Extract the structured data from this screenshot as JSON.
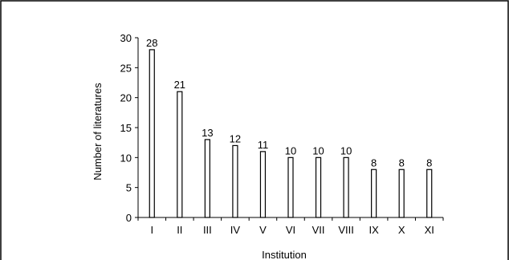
{
  "chart_data": {
    "type": "bar",
    "title": "",
    "xlabel": "Institution",
    "ylabel": "Number of literatures",
    "categories": [
      "I",
      "II",
      "III",
      "IV",
      "V",
      "VI",
      "VII",
      "VIII",
      "IX",
      "X",
      "XI"
    ],
    "values": [
      28,
      21,
      13,
      12,
      11,
      10,
      10,
      10,
      8,
      8,
      8
    ],
    "data_labels": [
      "28",
      "21",
      "13",
      "12",
      "11",
      "10",
      "10",
      "10",
      "8",
      "8",
      "8"
    ],
    "ylim": [
      0,
      30
    ],
    "yticks": [
      0,
      5,
      10,
      15,
      20,
      25,
      30
    ],
    "ytick_labels": [
      "0",
      "5",
      "10",
      "15",
      "20",
      "25",
      "30"
    ],
    "grid": false,
    "legend": "none",
    "bar_fill": "#ffffff",
    "bar_stroke": "#000000"
  }
}
